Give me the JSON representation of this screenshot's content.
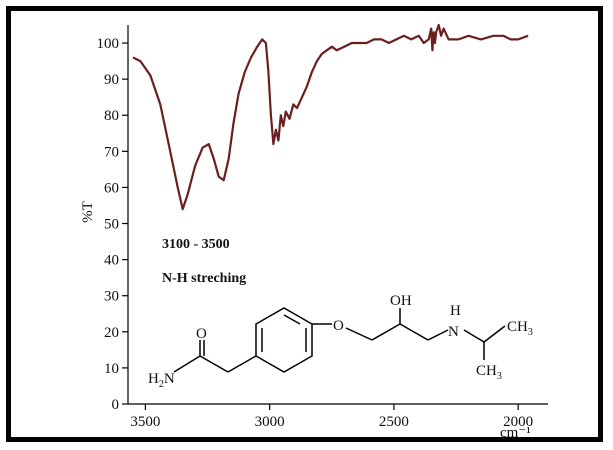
{
  "chart_data": {
    "type": "line",
    "title": "",
    "xlabel": "cm⁻¹",
    "ylabel": "%T",
    "xlim": [
      3570,
      1880
    ],
    "ylim": [
      0,
      105
    ],
    "x_ticks": [
      3500,
      3000,
      2500,
      2000
    ],
    "y_ticks": [
      0,
      10,
      20,
      30,
      40,
      50,
      60,
      70,
      80,
      90,
      100
    ],
    "line_color": "#6b1f1f",
    "series": [
      {
        "x": [
          3550,
          3520,
          3480,
          3440,
          3400,
          3370,
          3350,
          3330,
          3300,
          3270,
          3245,
          3225,
          3205,
          3185,
          3165,
          3145,
          3125,
          3100,
          3075,
          3050,
          3030,
          3015,
          3005,
          2995,
          2985,
          2975,
          2965,
          2955,
          2945,
          2935,
          2920,
          2905,
          2890,
          2870,
          2850,
          2830,
          2810,
          2790,
          2770,
          2750,
          2730,
          2700,
          2670,
          2640,
          2610,
          2580,
          2550,
          2520,
          2490,
          2460,
          2430,
          2400,
          2380,
          2360,
          2350,
          2345,
          2340,
          2335,
          2330,
          2320,
          2310,
          2300,
          2280,
          2260,
          2240,
          2200,
          2150,
          2100,
          2060,
          2030,
          2000,
          1960
        ],
        "y": [
          96,
          95,
          91,
          83,
          70,
          60,
          54,
          58,
          66,
          71,
          72,
          68,
          63,
          62,
          68,
          78,
          86,
          92,
          96,
          99,
          101,
          100,
          92,
          80,
          72,
          76,
          73,
          80,
          77,
          81,
          79,
          83,
          82,
          85,
          88,
          92,
          95,
          97,
          98,
          99,
          98,
          99,
          100,
          100,
          100,
          101,
          101,
          100,
          101,
          102,
          101,
          102,
          100,
          101,
          104,
          98,
          103,
          100,
          103,
          105,
          102,
          104,
          101,
          101,
          101,
          102,
          101,
          102,
          102,
          101,
          101,
          102
        ]
      }
    ],
    "annotations": [
      {
        "text": "3100 - 3500"
      },
      {
        "text": "N-H streching"
      }
    ]
  },
  "structure": {
    "o_label": "O",
    "oh_label": "OH",
    "ether_o_label": "O",
    "n_label": "N",
    "h_on_n": "H",
    "h2n_label": "H",
    "h2n_sub": "2",
    "h2n_n": "N",
    "ch3_top": "CH",
    "ch3_top_sub": "3",
    "ch3_bottom": "CH",
    "ch3_bottom_sub": "3"
  }
}
